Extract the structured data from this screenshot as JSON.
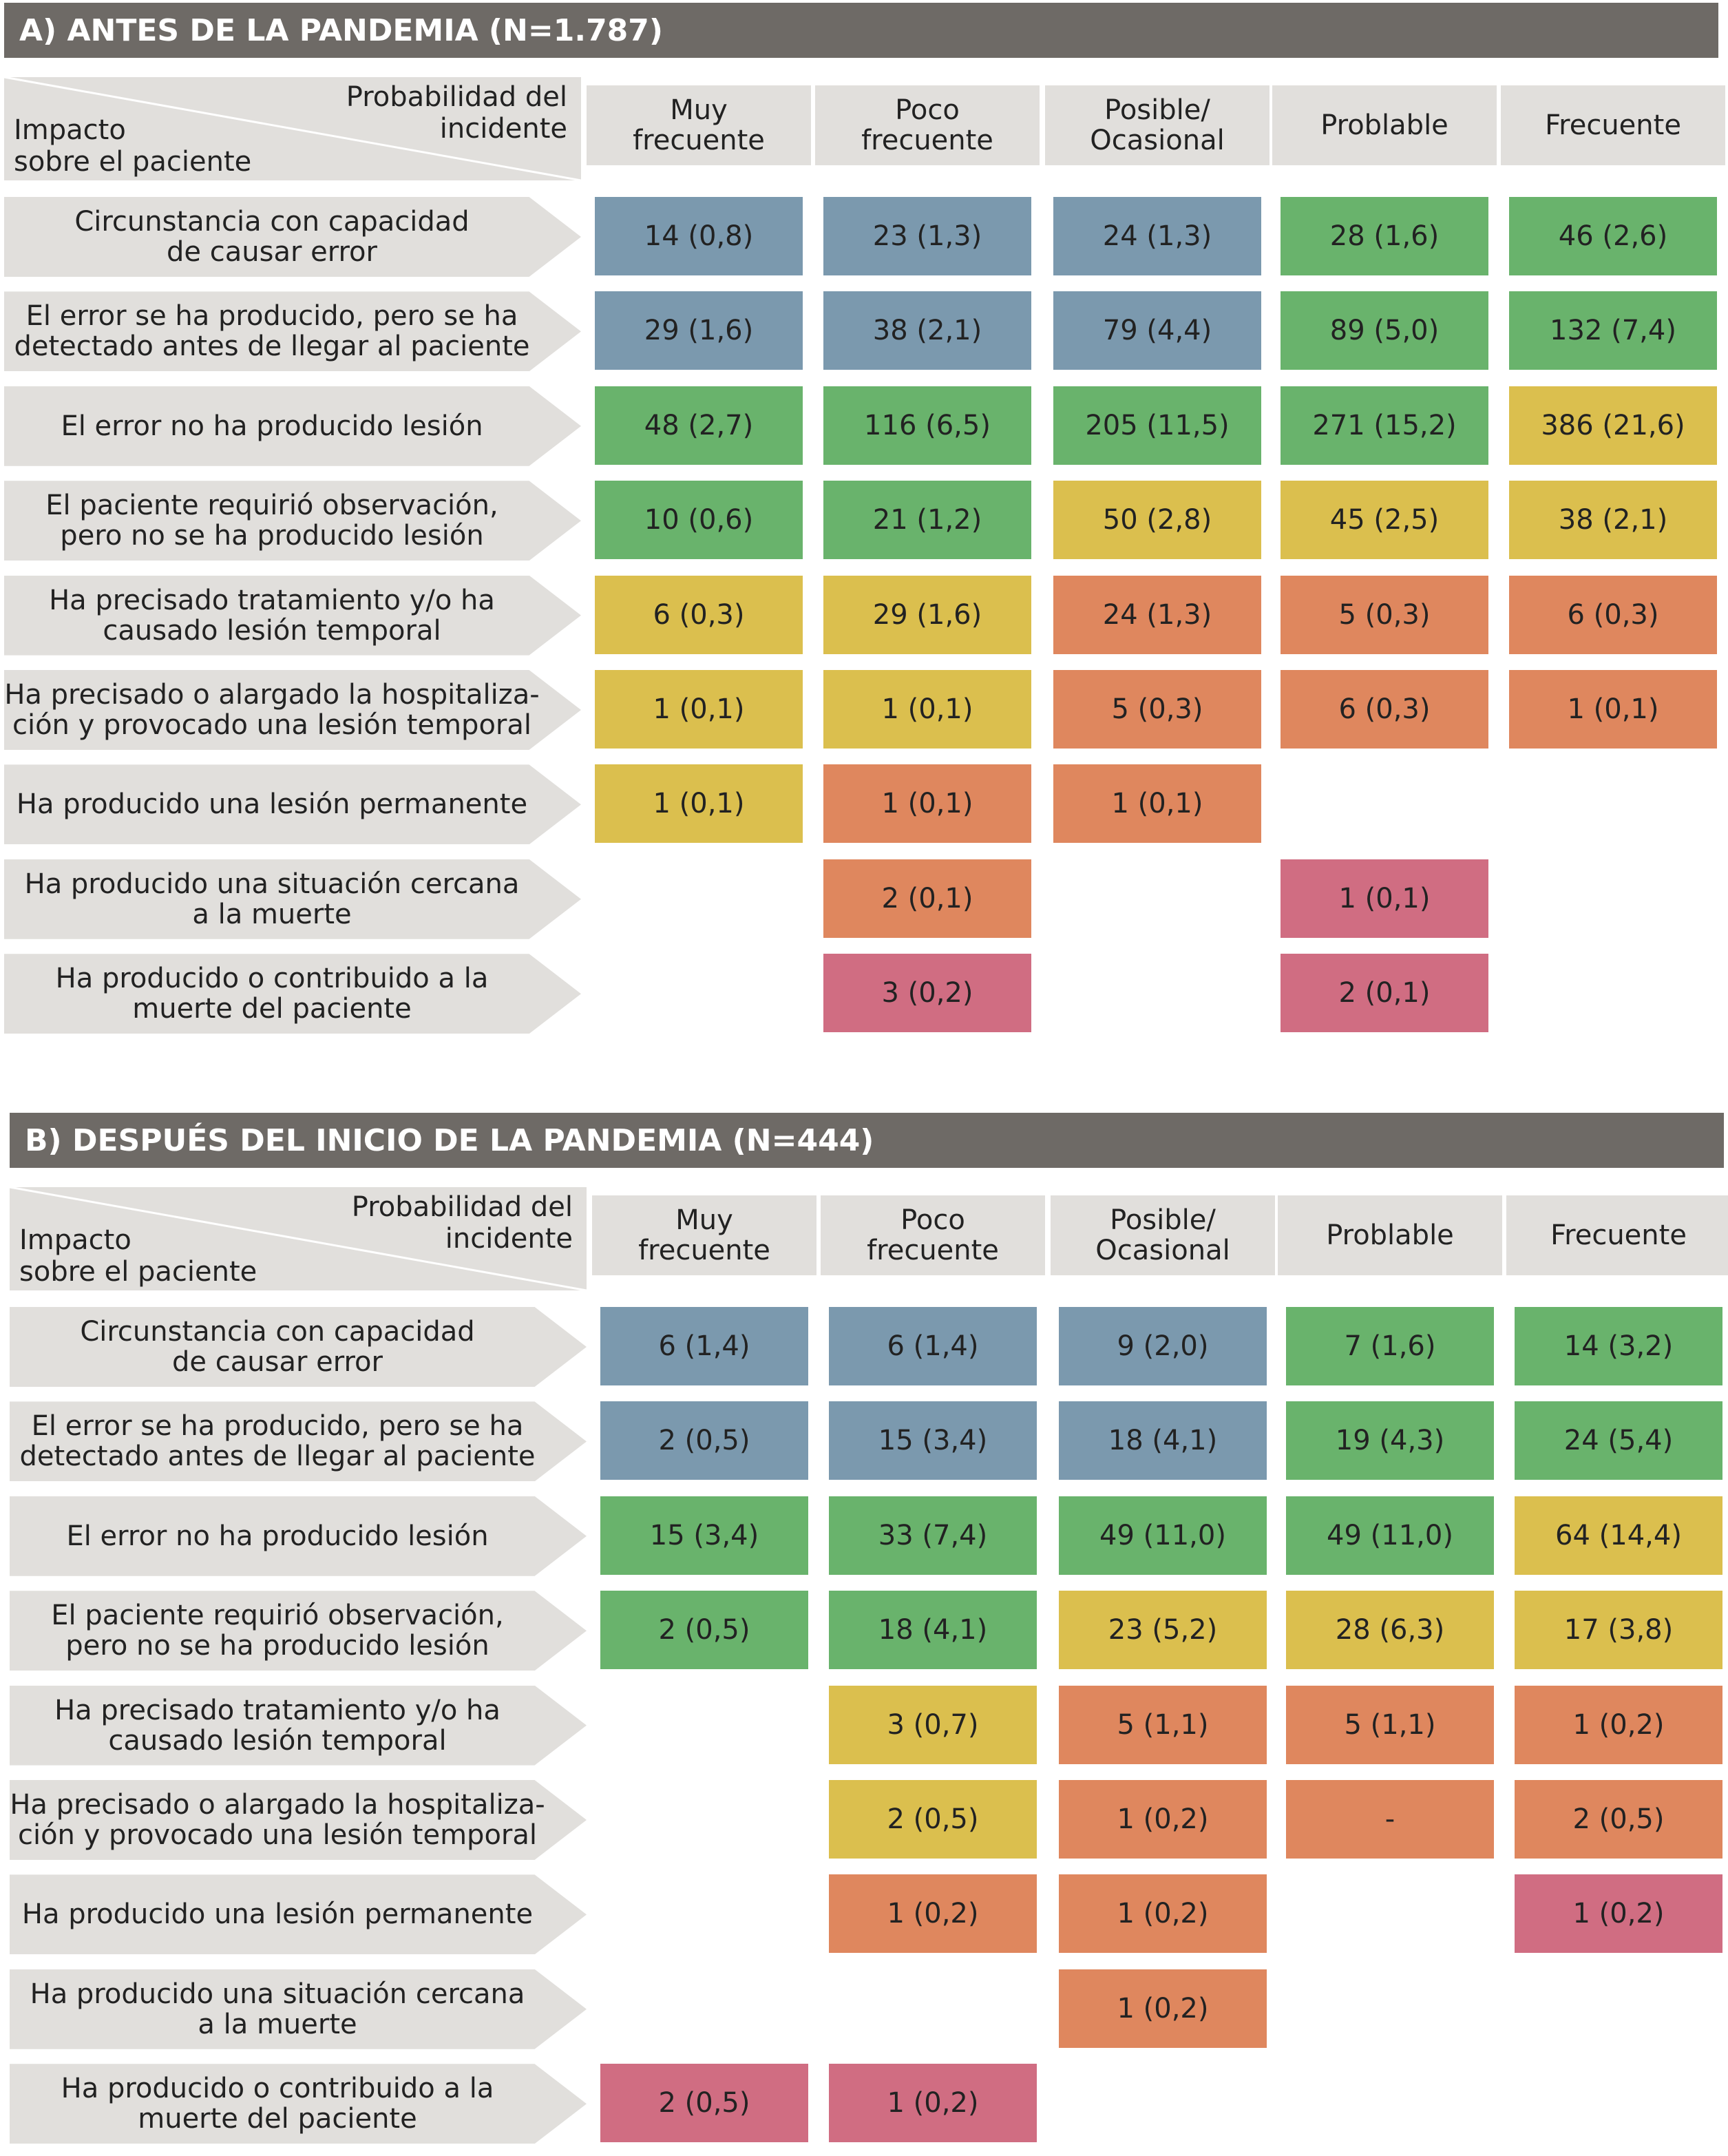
{
  "panels": [
    {
      "title": "A)  ANTES DE LA PANDEMIA (N=1.787)",
      "corner": {
        "top": "Probabilidad del\nincidente",
        "bottom": "Impacto\nsobre el paciente"
      },
      "columns": [
        "Muy\nfrecuente",
        "Poco\nfrecuente",
        "Posible/\nOcasional",
        "Problable",
        "Frecuente"
      ],
      "rows": [
        {
          "label": "Circunstancia con capacidad\nde causar error",
          "cells": [
            {
              "text": "14 (0,8)",
              "color": "#7b99ae"
            },
            {
              "text": "23 (1,3)",
              "color": "#7b99ae"
            },
            {
              "text": "24 (1,3)",
              "color": "#7b99ae"
            },
            {
              "text": "28 (1,6)",
              "color": "#69b36c"
            },
            {
              "text": "46 (2,6)",
              "color": "#69b36c"
            }
          ]
        },
        {
          "label": "El error se ha producido, pero se ha\ndetectado antes de llegar al paciente",
          "cells": [
            {
              "text": "29 (1,6)",
              "color": "#7b99ae"
            },
            {
              "text": "38 (2,1)",
              "color": "#7b99ae"
            },
            {
              "text": "79 (4,4)",
              "color": "#7b99ae"
            },
            {
              "text": "89 (5,0)",
              "color": "#69b36c"
            },
            {
              "text": "132 (7,4)",
              "color": "#69b36c"
            }
          ]
        },
        {
          "label": "El error no ha producido lesión",
          "cells": [
            {
              "text": "48 (2,7)",
              "color": "#69b36c"
            },
            {
              "text": "116 (6,5)",
              "color": "#69b36c"
            },
            {
              "text": "205 (11,5)",
              "color": "#69b36c"
            },
            {
              "text": "271 (15,2)",
              "color": "#69b36c"
            },
            {
              "text": "386 (21,6)",
              "color": "#dbbf4e"
            }
          ]
        },
        {
          "label": "El paciente requirió observación,\npero no se ha producido lesión",
          "cells": [
            {
              "text": "10 (0,6)",
              "color": "#69b36c"
            },
            {
              "text": "21 (1,2)",
              "color": "#69b36c"
            },
            {
              "text": "50 (2,8)",
              "color": "#dbbf4e"
            },
            {
              "text": "45 (2,5)",
              "color": "#dbbf4e"
            },
            {
              "text": "38 (2,1)",
              "color": "#dbbf4e"
            }
          ]
        },
        {
          "label": "Ha precisado tratamiento y/o ha\ncausado lesión temporal",
          "cells": [
            {
              "text": "6 (0,3)",
              "color": "#dbbf4e"
            },
            {
              "text": "29 (1,6)",
              "color": "#dbbf4e"
            },
            {
              "text": "24 (1,3)",
              "color": "#df875e"
            },
            {
              "text": "5 (0,3)",
              "color": "#df875e"
            },
            {
              "text": "6 (0,3)",
              "color": "#df875e"
            }
          ]
        },
        {
          "label": "Ha precisado o alargado la hospitaliza-\nción y provocado una lesión temporal",
          "cells": [
            {
              "text": "1 (0,1)",
              "color": "#dbbf4e"
            },
            {
              "text": "1 (0,1)",
              "color": "#dbbf4e"
            },
            {
              "text": "5 (0,3)",
              "color": "#df875e"
            },
            {
              "text": "6 (0,3)",
              "color": "#df875e"
            },
            {
              "text": "1 (0,1)",
              "color": "#df875e"
            }
          ]
        },
        {
          "label": "Ha producido una lesión permanente",
          "cells": [
            {
              "text": "1 (0,1)",
              "color": "#dbbf4e"
            },
            {
              "text": "1 (0,1)",
              "color": "#df875e"
            },
            {
              "text": "1 (0,1)",
              "color": "#df875e"
            },
            null,
            null
          ]
        },
        {
          "label": "Ha producido una situación cercana\na la muerte",
          "cells": [
            null,
            {
              "text": "2 (0,1)",
              "color": "#df875e"
            },
            null,
            {
              "text": "1 (0,1)",
              "color": "#d06d82"
            },
            null
          ]
        },
        {
          "label": "Ha producido o contribuido a la\nmuerte del paciente",
          "cells": [
            null,
            {
              "text": "3 (0,2)",
              "color": "#d06d82"
            },
            null,
            {
              "text": "2 (0,1)",
              "color": "#d06d82"
            },
            null
          ]
        }
      ]
    },
    {
      "title": "B)  DESPUÉS DEL INICIO DE LA PANDEMIA (N=444)",
      "corner": {
        "top": "Probabilidad del\nincidente",
        "bottom": "Impacto\nsobre el paciente"
      },
      "columns": [
        "Muy\nfrecuente",
        "Poco\nfrecuente",
        "Posible/\nOcasional",
        "Problable",
        "Frecuente"
      ],
      "rows": [
        {
          "label": "Circunstancia con capacidad\nde causar error",
          "cells": [
            {
              "text": "6 (1,4)",
              "color": "#7b99ae"
            },
            {
              "text": "6 (1,4)",
              "color": "#7b99ae"
            },
            {
              "text": "9 (2,0)",
              "color": "#7b99ae"
            },
            {
              "text": "7 (1,6)",
              "color": "#69b36c"
            },
            {
              "text": "14 (3,2)",
              "color": "#69b36c"
            }
          ]
        },
        {
          "label": "El error se ha producido, pero se ha\ndetectado antes de llegar al paciente",
          "cells": [
            {
              "text": "2 (0,5)",
              "color": "#7b99ae"
            },
            {
              "text": "15 (3,4)",
              "color": "#7b99ae"
            },
            {
              "text": "18 (4,1)",
              "color": "#7b99ae"
            },
            {
              "text": "19 (4,3)",
              "color": "#69b36c"
            },
            {
              "text": "24 (5,4)",
              "color": "#69b36c"
            }
          ]
        },
        {
          "label": "El error no ha producido lesión",
          "cells": [
            {
              "text": "15 (3,4)",
              "color": "#69b36c"
            },
            {
              "text": "33 (7,4)",
              "color": "#69b36c"
            },
            {
              "text": "49 (11,0)",
              "color": "#69b36c"
            },
            {
              "text": "49 (11,0)",
              "color": "#69b36c"
            },
            {
              "text": "64 (14,4)",
              "color": "#dbbf4e"
            }
          ]
        },
        {
          "label": "El paciente requirió observación,\npero no se ha producido lesión",
          "cells": [
            {
              "text": "2 (0,5)",
              "color": "#69b36c"
            },
            {
              "text": "18 (4,1)",
              "color": "#69b36c"
            },
            {
              "text": "23 (5,2)",
              "color": "#dbbf4e"
            },
            {
              "text": "28 (6,3)",
              "color": "#dbbf4e"
            },
            {
              "text": "17 (3,8)",
              "color": "#dbbf4e"
            }
          ]
        },
        {
          "label": "Ha precisado tratamiento y/o ha\ncausado lesión temporal",
          "cells": [
            null,
            {
              "text": "3 (0,7)",
              "color": "#dbbf4e"
            },
            {
              "text": "5 (1,1)",
              "color": "#df875e"
            },
            {
              "text": "5 (1,1)",
              "color": "#df875e"
            },
            {
              "text": "1 (0,2)",
              "color": "#df875e"
            }
          ]
        },
        {
          "label": "Ha precisado o alargado la hospitaliza-\nción y provocado una lesión temporal",
          "cells": [
            null,
            {
              "text": "2 (0,5)",
              "color": "#dbbf4e"
            },
            {
              "text": "1 (0,2)",
              "color": "#df875e"
            },
            {
              "text": "-",
              "color": "#df875e"
            },
            {
              "text": "2 (0,5)",
              "color": "#df875e"
            }
          ]
        },
        {
          "label": "Ha producido una lesión permanente",
          "cells": [
            null,
            {
              "text": "1 (0,2)",
              "color": "#df875e"
            },
            {
              "text": "1 (0,2)",
              "color": "#df875e"
            },
            null,
            {
              "text": "1 (0,2)",
              "color": "#d06d82"
            }
          ]
        },
        {
          "label": "Ha producido una situación cercana\na la muerte",
          "cells": [
            null,
            null,
            {
              "text": "1 (0,2)",
              "color": "#df875e"
            },
            null,
            null
          ]
        },
        {
          "label": "Ha producido o contribuido a la\nmuerte del paciente",
          "cells": [
            {
              "text": "2 (0,5)",
              "color": "#d06d82"
            },
            {
              "text": "1 (0,2)",
              "color": "#d06d82"
            },
            null,
            null,
            null
          ]
        }
      ]
    }
  ]
}
